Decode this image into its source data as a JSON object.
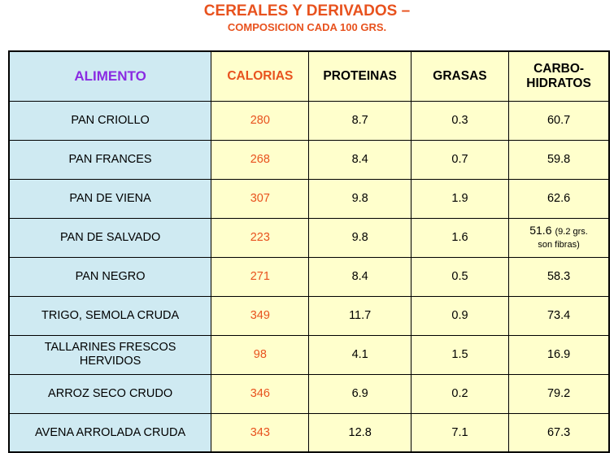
{
  "title": "CEREALES Y DERIVADOS –",
  "subtitle": "COMPOSICION CADA 100 GRS.",
  "headers": {
    "alimento": "ALIMENTO",
    "calorias": "CALORIAS",
    "proteinas": "PROTEINAS",
    "grasas": "GRASAS",
    "carbo_line1": "CARBO-",
    "carbo_line2": "HIDRATOS"
  },
  "rows": [
    {
      "alimento": "PAN CRIOLLO",
      "calorias": "280",
      "proteinas": "8.7",
      "grasas": "0.3",
      "carbohidratos": "60.7"
    },
    {
      "alimento": "PAN FRANCES",
      "calorias": "268",
      "proteinas": "8.4",
      "grasas": "0.7",
      "carbohidratos": "59.8"
    },
    {
      "alimento": "PAN DE VIENA",
      "calorias": "307",
      "proteinas": "9.8",
      "grasas": "1.9",
      "carbohidratos": "62.6"
    },
    {
      "alimento": "PAN DE SALVADO",
      "calorias": "223",
      "proteinas": "9.8",
      "grasas": "1.6",
      "carbohidratos": "51.6",
      "carbo_note": "(9.2 grs.",
      "carbo_note2": "son fibras)"
    },
    {
      "alimento": "PAN NEGRO",
      "calorias": "271",
      "proteinas": "8.4",
      "grasas": "0.5",
      "carbohidratos": "58.3"
    },
    {
      "alimento": "TRIGO, SEMOLA CRUDA",
      "calorias": "349",
      "proteinas": "11.7",
      "grasas": "0.9",
      "carbohidratos": "73.4"
    },
    {
      "alimento_line1": "TALLARINES FRESCOS",
      "alimento_line2": "HERVIDOS",
      "calorias": "98",
      "proteinas": "4.1",
      "grasas": "1.5",
      "carbohidratos": "16.9"
    },
    {
      "alimento": "ARROZ SECO CRUDO",
      "calorias": "346",
      "proteinas": "6.9",
      "grasas": "0.2",
      "carbohidratos": "79.2"
    },
    {
      "alimento": "AVENA ARROLADA CRUDA",
      "calorias": "343",
      "proteinas": "12.8",
      "grasas": "7.1",
      "carbohidratos": "67.3"
    }
  ],
  "colors": {
    "accent_orange": "#e8521e",
    "header_purple": "#8a2be2",
    "name_column_bg": "#cfeaf2",
    "cell_bg": "#ffffcc"
  }
}
